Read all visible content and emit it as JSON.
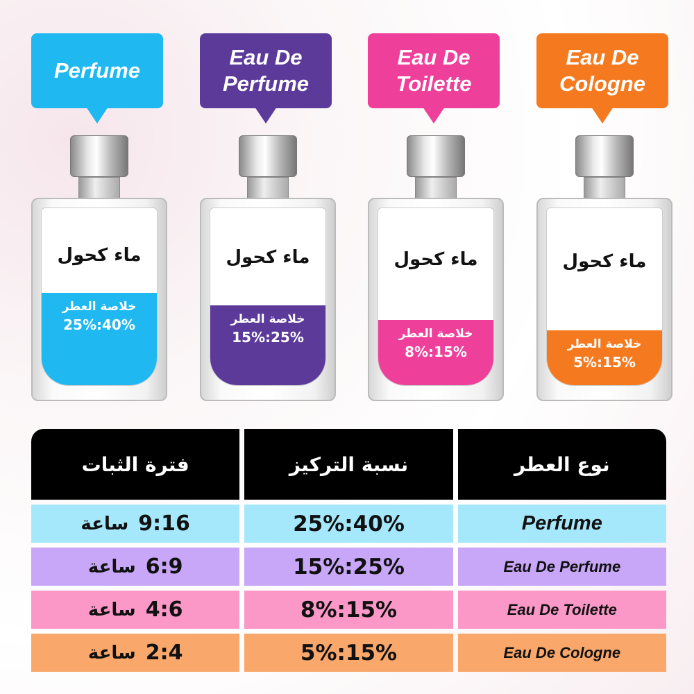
{
  "bottles": [
    {
      "label": "Perfume",
      "color": "#1fb8f0",
      "alcohol": "ماء كحول",
      "essence": "خلاصة العطر",
      "range": "25%:40%",
      "fill_fraction": 0.52
    },
    {
      "label": "Eau De Perfume",
      "color": "#5b3a9a",
      "alcohol": "ماء كحول",
      "essence": "خلاصة العطر",
      "range": "15%:25%",
      "fill_fraction": 0.45
    },
    {
      "label": "Eau De Toilette",
      "color": "#ee3f9a",
      "alcohol": "ماء كحول",
      "essence": "خلاصة العطر",
      "range": "8%:15%",
      "fill_fraction": 0.37
    },
    {
      "label": "Eau De Cologne",
      "color": "#f57a1f",
      "alcohol": "ماء كحول",
      "essence": "خلاصة العطر",
      "range": "5%:15%",
      "fill_fraction": 0.31
    }
  ],
  "table": {
    "headers": [
      "فترة الثبات",
      "نسبة التركيز",
      "نوع العطر"
    ],
    "unit": "ساعة",
    "rows": [
      {
        "duration": "9:16",
        "concentration": "25%:40%",
        "type": "Perfume",
        "color": "#a6e8fb"
      },
      {
        "duration": "6:9",
        "concentration": "15%:25%",
        "type": "Eau De Perfume",
        "color": "#c8a6f8"
      },
      {
        "duration": "4:6",
        "concentration": "8%:15%",
        "type": "Eau De Toilette",
        "color": "#fb98c8"
      },
      {
        "duration": "2:4",
        "concentration": "5%:15%",
        "type": "Eau De Cologne",
        "color": "#f9a76a"
      }
    ]
  }
}
